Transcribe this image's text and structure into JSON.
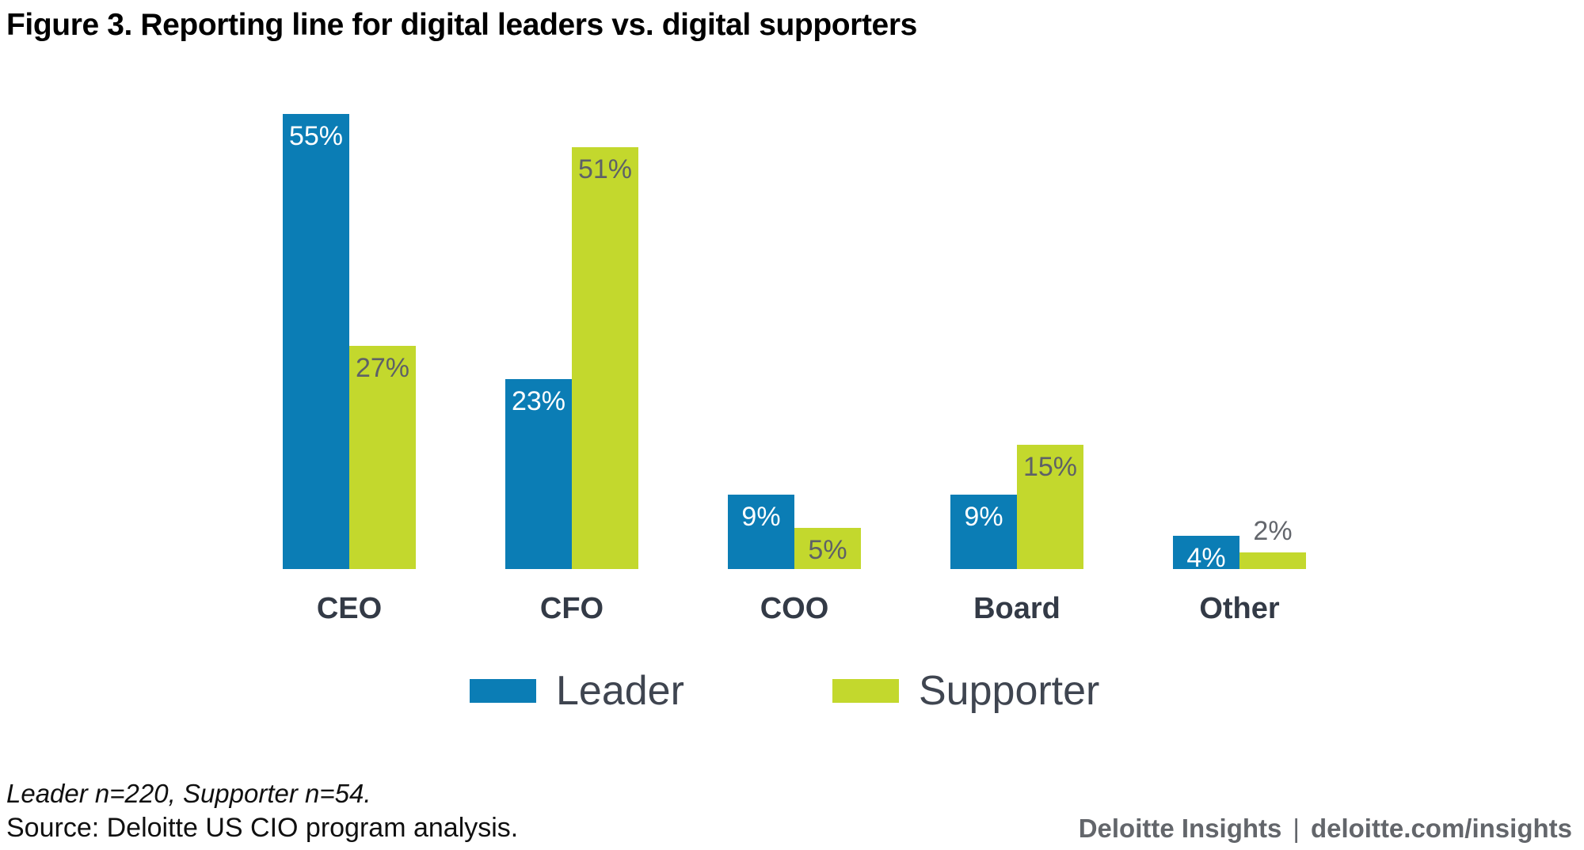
{
  "title": "Figure 3. Reporting line for digital leaders vs. digital supporters",
  "chart_data": {
    "type": "bar",
    "categories": [
      "CEO",
      "CFO",
      "COO",
      "Board",
      "Other"
    ],
    "series": [
      {
        "name": "Leader",
        "color": "#0b7db5",
        "label_color_inside": "#ffffff",
        "values": [
          55,
          23,
          9,
          9,
          4
        ]
      },
      {
        "name": "Supporter",
        "color": "#c3d82d",
        "label_color_inside": "#5e6167",
        "values": [
          27,
          51,
          5,
          15,
          2
        ]
      }
    ],
    "value_unit": "%",
    "ylim": [
      0,
      55
    ],
    "gridlines": false,
    "axis_lines": false,
    "value_labels": "inside-top-of-bar (above bar in gray when bar too short)",
    "legend_position": "bottom"
  },
  "legend": {
    "leader": "Leader",
    "supporter": "Supporter"
  },
  "footer": {
    "note": "Leader n=220, Supporter n=54.",
    "source": "Source: Deloitte US CIO program analysis.",
    "brand_left": "Deloitte Insights",
    "brand_separator": "|",
    "brand_right": "deloitte.com/insights"
  },
  "colors": {
    "leader_bar": "#0b7db5",
    "supporter_bar": "#c3d82d",
    "label_on_leader": "#ffffff",
    "label_on_supporter": "#5e6167",
    "label_above_bar": "#63666c",
    "category_label": "#333a46",
    "legend_text": "#3f4550",
    "branding_text": "#63666b",
    "title_text": "#000000"
  }
}
